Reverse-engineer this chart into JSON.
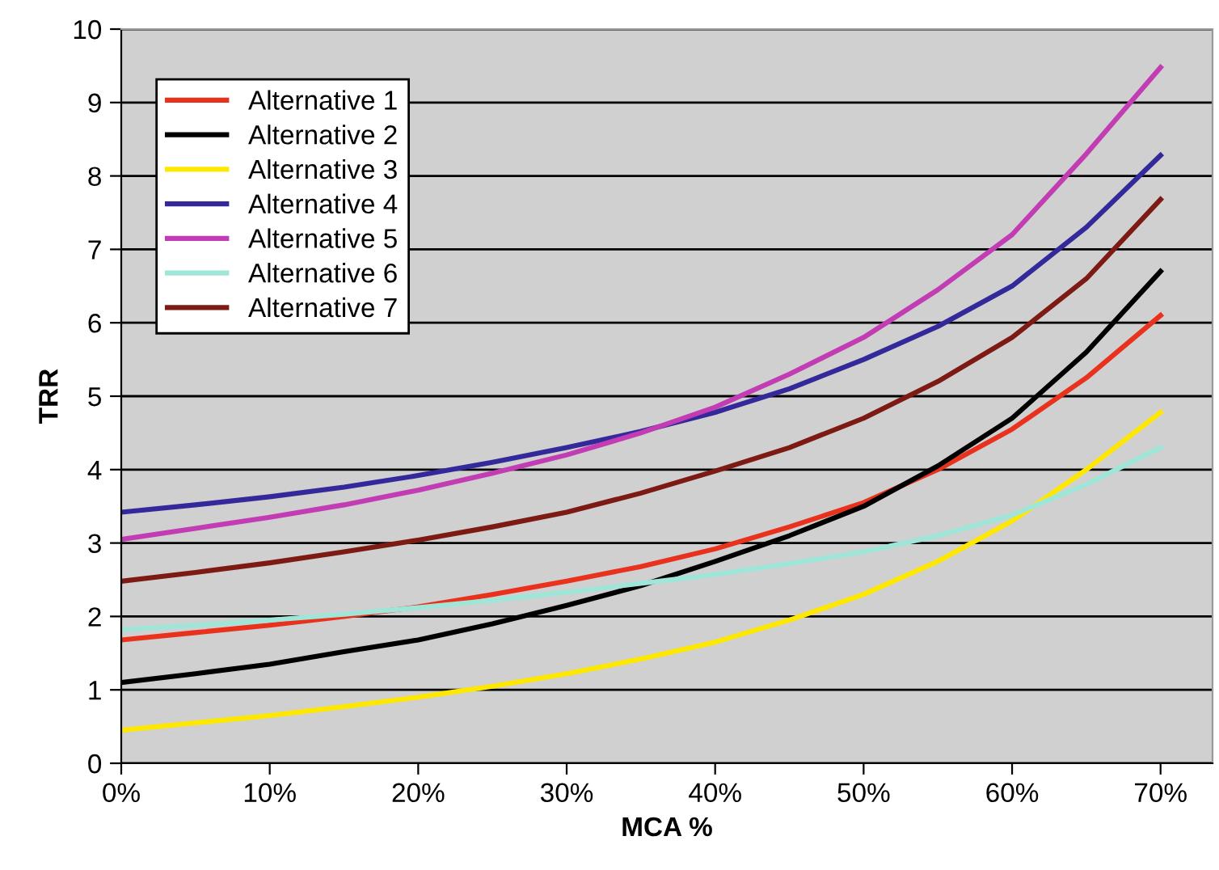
{
  "chart_data": {
    "type": "line",
    "xlabel": "MCA %",
    "ylabel": "TRR",
    "x": [
      0,
      5,
      10,
      15,
      20,
      25,
      30,
      35,
      40,
      45,
      50,
      55,
      60,
      65,
      70
    ],
    "xlim": [
      0,
      73.5
    ],
    "xticks": [
      {
        "value": 0,
        "label": "0%"
      },
      {
        "value": 10,
        "label": "10%"
      },
      {
        "value": 20,
        "label": "20%"
      },
      {
        "value": 30,
        "label": "30%"
      },
      {
        "value": 40,
        "label": "40%"
      },
      {
        "value": 50,
        "label": "50%"
      },
      {
        "value": 60,
        "label": "60%"
      },
      {
        "value": 70,
        "label": "70%"
      }
    ],
    "ylim": [
      0,
      10
    ],
    "yticks": [
      0,
      1,
      2,
      3,
      4,
      5,
      6,
      7,
      8,
      9,
      10
    ],
    "grid": "y",
    "legend": "top left",
    "marker": "none",
    "line_style": "solid",
    "series": [
      {
        "name": "Alternative 1",
        "color": "#e8321e",
        "values": [
          1.68,
          1.78,
          1.88,
          2.0,
          2.13,
          2.3,
          2.48,
          2.68,
          2.92,
          3.22,
          3.55,
          4.0,
          4.55,
          5.25,
          6.1
        ]
      },
      {
        "name": "Alternative 2",
        "color": "#000000",
        "values": [
          1.1,
          1.22,
          1.35,
          1.52,
          1.68,
          1.9,
          2.15,
          2.42,
          2.75,
          3.1,
          3.5,
          4.05,
          4.7,
          5.6,
          6.7
        ]
      },
      {
        "name": "Alternative 3",
        "color": "#ffe800",
        "values": [
          0.45,
          0.55,
          0.65,
          0.77,
          0.9,
          1.05,
          1.22,
          1.42,
          1.65,
          1.95,
          2.3,
          2.75,
          3.3,
          4.0,
          4.78
        ]
      },
      {
        "name": "Alternative 4",
        "color": "#33299a",
        "values": [
          3.42,
          3.52,
          3.63,
          3.76,
          3.92,
          4.1,
          4.3,
          4.52,
          4.78,
          5.1,
          5.5,
          5.95,
          6.5,
          7.3,
          8.28
        ]
      },
      {
        "name": "Alternative 5",
        "color": "#c23cb4",
        "values": [
          3.05,
          3.2,
          3.35,
          3.52,
          3.72,
          3.95,
          4.2,
          4.5,
          4.85,
          5.3,
          5.8,
          6.45,
          7.2,
          8.3,
          9.48
        ]
      },
      {
        "name": "Alternative 6",
        "color": "#a0e6d8",
        "values": [
          1.82,
          1.88,
          1.95,
          2.03,
          2.12,
          2.22,
          2.33,
          2.45,
          2.57,
          2.72,
          2.88,
          3.1,
          3.38,
          3.8,
          4.3
        ]
      },
      {
        "name": "Alternative 7",
        "color": "#7d1a14",
        "values": [
          2.48,
          2.6,
          2.73,
          2.88,
          3.04,
          3.22,
          3.42,
          3.68,
          3.98,
          4.3,
          4.7,
          5.2,
          5.8,
          6.6,
          7.68
        ]
      }
    ]
  }
}
